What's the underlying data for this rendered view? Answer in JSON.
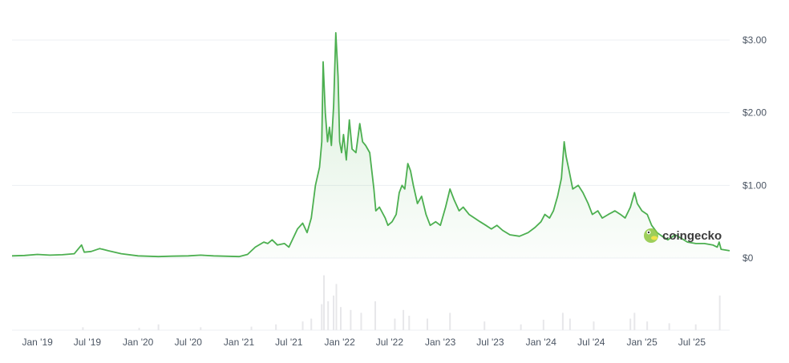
{
  "chart_data": {
    "type": "area",
    "y_axis": {
      "position": "right",
      "ticks": [
        "$0",
        "$1.00",
        "$2.00",
        "$3.00"
      ],
      "tick_values": [
        0,
        1,
        2,
        3
      ],
      "ylim": [
        0,
        3.0
      ]
    },
    "x_axis": {
      "ticks": [
        "Jan '19",
        "Jul '19",
        "Jan '20",
        "Jul '20",
        "Jan '21",
        "Jul '21",
        "Jan '22",
        "Jul '22",
        "Jan '23",
        "Jul '23",
        "Jan '24",
        "Jul '24",
        "Jan '25",
        "Jul '25"
      ],
      "tick_dates": [
        "2019-01-01",
        "2019-07-01",
        "2020-01-01",
        "2020-07-01",
        "2021-01-01",
        "2021-07-01",
        "2022-01-01",
        "2022-07-01",
        "2023-01-01",
        "2023-07-01",
        "2024-01-01",
        "2024-07-01",
        "2025-01-01",
        "2025-07-01"
      ],
      "xlim": [
        "2018-10-01",
        "2025-11-15"
      ]
    },
    "grid": true,
    "colors": {
      "line": "#4caf50",
      "fill": "#4caf50",
      "volume": "#e7e7ea",
      "grid": "#eceff3"
    },
    "series": [
      {
        "values_unit": "USD",
        "points": [
          [
            "2018-10-01",
            0.03
          ],
          [
            "2018-11-15",
            0.035
          ],
          [
            "2019-01-01",
            0.05
          ],
          [
            "2019-02-15",
            0.04
          ],
          [
            "2019-04-01",
            0.045
          ],
          [
            "2019-05-15",
            0.06
          ],
          [
            "2019-06-10",
            0.18
          ],
          [
            "2019-06-20",
            0.08
          ],
          [
            "2019-07-15",
            0.09
          ],
          [
            "2019-08-15",
            0.13
          ],
          [
            "2019-09-15",
            0.1
          ],
          [
            "2019-11-01",
            0.06
          ],
          [
            "2020-01-01",
            0.03
          ],
          [
            "2020-03-15",
            0.02
          ],
          [
            "2020-05-01",
            0.025
          ],
          [
            "2020-07-01",
            0.03
          ],
          [
            "2020-08-15",
            0.04
          ],
          [
            "2020-10-01",
            0.03
          ],
          [
            "2021-01-01",
            0.02
          ],
          [
            "2021-02-01",
            0.05
          ],
          [
            "2021-03-01",
            0.15
          ],
          [
            "2021-04-01",
            0.22
          ],
          [
            "2021-04-15",
            0.2
          ],
          [
            "2021-05-01",
            0.25
          ],
          [
            "2021-05-20",
            0.18
          ],
          [
            "2021-06-15",
            0.2
          ],
          [
            "2021-07-01",
            0.15
          ],
          [
            "2021-08-01",
            0.4
          ],
          [
            "2021-08-20",
            0.48
          ],
          [
            "2021-09-05",
            0.35
          ],
          [
            "2021-09-20",
            0.55
          ],
          [
            "2021-10-05",
            1.0
          ],
          [
            "2021-10-20",
            1.25
          ],
          [
            "2021-10-28",
            1.6
          ],
          [
            "2021-11-02",
            2.7
          ],
          [
            "2021-11-10",
            2.0
          ],
          [
            "2021-11-18",
            1.6
          ],
          [
            "2021-11-25",
            1.8
          ],
          [
            "2021-12-02",
            1.55
          ],
          [
            "2021-12-10",
            2.1
          ],
          [
            "2021-12-18",
            3.1
          ],
          [
            "2021-12-22",
            2.8
          ],
          [
            "2021-12-26",
            2.5
          ],
          [
            "2022-01-01",
            1.6
          ],
          [
            "2022-01-08",
            1.45
          ],
          [
            "2022-01-15",
            1.7
          ],
          [
            "2022-01-25",
            1.35
          ],
          [
            "2022-02-05",
            1.9
          ],
          [
            "2022-02-15",
            1.5
          ],
          [
            "2022-03-01",
            1.45
          ],
          [
            "2022-03-15",
            1.85
          ],
          [
            "2022-03-25",
            1.6
          ],
          [
            "2022-04-05",
            1.55
          ],
          [
            "2022-04-20",
            1.45
          ],
          [
            "2022-05-05",
            0.95
          ],
          [
            "2022-05-12",
            0.65
          ],
          [
            "2022-05-25",
            0.7
          ],
          [
            "2022-06-15",
            0.55
          ],
          [
            "2022-06-25",
            0.45
          ],
          [
            "2022-07-10",
            0.5
          ],
          [
            "2022-07-25",
            0.6
          ],
          [
            "2022-08-05",
            0.9
          ],
          [
            "2022-08-15",
            1.0
          ],
          [
            "2022-08-25",
            0.95
          ],
          [
            "2022-09-05",
            1.3
          ],
          [
            "2022-09-15",
            1.2
          ],
          [
            "2022-09-25",
            1.0
          ],
          [
            "2022-10-10",
            0.75
          ],
          [
            "2022-10-25",
            0.85
          ],
          [
            "2022-11-10",
            0.6
          ],
          [
            "2022-11-25",
            0.45
          ],
          [
            "2022-12-15",
            0.5
          ],
          [
            "2023-01-01",
            0.45
          ],
          [
            "2023-01-20",
            0.7
          ],
          [
            "2023-02-05",
            0.95
          ],
          [
            "2023-02-20",
            0.8
          ],
          [
            "2023-03-10",
            0.65
          ],
          [
            "2023-03-25",
            0.7
          ],
          [
            "2023-04-15",
            0.6
          ],
          [
            "2023-05-05",
            0.55
          ],
          [
            "2023-05-25",
            0.5
          ],
          [
            "2023-06-15",
            0.45
          ],
          [
            "2023-07-05",
            0.4
          ],
          [
            "2023-07-25",
            0.45
          ],
          [
            "2023-08-15",
            0.38
          ],
          [
            "2023-09-10",
            0.32
          ],
          [
            "2023-10-15",
            0.3
          ],
          [
            "2023-11-15",
            0.35
          ],
          [
            "2023-12-10",
            0.42
          ],
          [
            "2024-01-01",
            0.5
          ],
          [
            "2024-01-15",
            0.6
          ],
          [
            "2024-02-01",
            0.55
          ],
          [
            "2024-02-15",
            0.65
          ],
          [
            "2024-03-01",
            0.85
          ],
          [
            "2024-03-15",
            1.1
          ],
          [
            "2024-03-25",
            1.6
          ],
          [
            "2024-04-01",
            1.4
          ],
          [
            "2024-04-12",
            1.2
          ],
          [
            "2024-04-25",
            0.95
          ],
          [
            "2024-05-15",
            1.0
          ],
          [
            "2024-06-01",
            0.9
          ],
          [
            "2024-06-20",
            0.75
          ],
          [
            "2024-07-05",
            0.6
          ],
          [
            "2024-07-25",
            0.65
          ],
          [
            "2024-08-10",
            0.55
          ],
          [
            "2024-09-01",
            0.6
          ],
          [
            "2024-09-25",
            0.65
          ],
          [
            "2024-10-15",
            0.6
          ],
          [
            "2024-11-01",
            0.55
          ],
          [
            "2024-11-20",
            0.7
          ],
          [
            "2024-12-05",
            0.9
          ],
          [
            "2024-12-15",
            0.75
          ],
          [
            "2025-01-01",
            0.65
          ],
          [
            "2025-01-20",
            0.6
          ],
          [
            "2025-02-05",
            0.45
          ],
          [
            "2025-02-25",
            0.35
          ],
          [
            "2025-03-15",
            0.3
          ],
          [
            "2025-04-05",
            0.25
          ],
          [
            "2025-05-01",
            0.32
          ],
          [
            "2025-05-20",
            0.28
          ],
          [
            "2025-06-15",
            0.22
          ],
          [
            "2025-07-15",
            0.2
          ],
          [
            "2025-08-15",
            0.2
          ],
          [
            "2025-09-15",
            0.18
          ],
          [
            "2025-10-01",
            0.15
          ],
          [
            "2025-10-08",
            0.22
          ],
          [
            "2025-10-15",
            0.12
          ],
          [
            "2025-11-15",
            0.1
          ]
        ]
      }
    ],
    "volume": {
      "points": [
        [
          "2019-06-15",
          0.05
        ],
        [
          "2020-01-05",
          0.04
        ],
        [
          "2020-03-15",
          0.1
        ],
        [
          "2020-08-15",
          0.05
        ],
        [
          "2021-02-15",
          0.06
        ],
        [
          "2021-05-15",
          0.1
        ],
        [
          "2021-08-20",
          0.15
        ],
        [
          "2021-09-20",
          0.2
        ],
        [
          "2021-10-28",
          0.45
        ],
        [
          "2021-11-05",
          0.95
        ],
        [
          "2021-11-20",
          0.5
        ],
        [
          "2021-12-10",
          0.6
        ],
        [
          "2021-12-20",
          0.8
        ],
        [
          "2022-01-05",
          0.4
        ],
        [
          "2022-02-10",
          0.35
        ],
        [
          "2022-03-20",
          0.3
        ],
        [
          "2022-05-10",
          0.5
        ],
        [
          "2022-07-20",
          0.2
        ],
        [
          "2022-08-20",
          0.35
        ],
        [
          "2022-09-10",
          0.25
        ],
        [
          "2022-11-15",
          0.2
        ],
        [
          "2023-02-05",
          0.3
        ],
        [
          "2023-06-10",
          0.15
        ],
        [
          "2023-10-20",
          0.1
        ],
        [
          "2024-01-10",
          0.18
        ],
        [
          "2024-03-20",
          0.3
        ],
        [
          "2024-04-15",
          0.2
        ],
        [
          "2024-07-10",
          0.15
        ],
        [
          "2024-11-20",
          0.2
        ],
        [
          "2024-12-05",
          0.3
        ],
        [
          "2025-01-20",
          0.15
        ],
        [
          "2025-04-10",
          0.12
        ],
        [
          "2025-07-15",
          0.1
        ],
        [
          "2025-10-10",
          0.6
        ]
      ]
    }
  },
  "watermark": {
    "text": "coingecko",
    "icon": "coingecko-gecko-icon"
  }
}
